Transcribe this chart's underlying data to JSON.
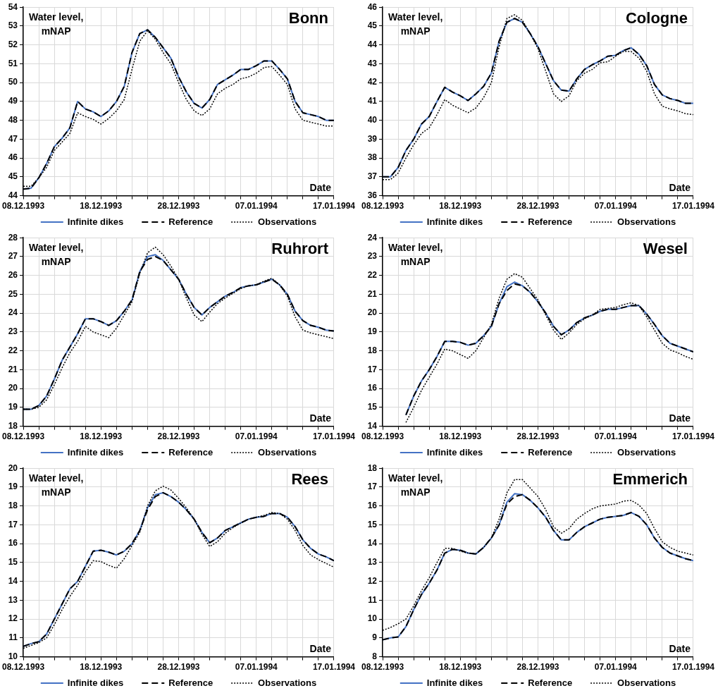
{
  "chart_data": [
    {
      "type": "line",
      "title": "Bonn",
      "ylabel": "Water level, mNAP",
      "xlabel": "Date",
      "x": [
        "1993-12-08",
        "1993-12-09",
        "1993-12-10",
        "1993-12-11",
        "1993-12-12",
        "1993-12-13",
        "1993-12-14",
        "1993-12-15",
        "1993-12-16",
        "1993-12-17",
        "1993-12-18",
        "1993-12-19",
        "1993-12-20",
        "1993-12-21",
        "1993-12-22",
        "1993-12-23",
        "1993-12-24",
        "1993-12-25",
        "1993-12-26",
        "1993-12-27",
        "1993-12-28",
        "1993-12-29",
        "1993-12-30",
        "1993-12-31",
        "1994-01-01",
        "1994-01-02",
        "1994-01-03",
        "1994-01-04",
        "1994-01-05",
        "1994-01-06",
        "1994-01-07",
        "1994-01-08",
        "1994-01-09",
        "1994-01-10",
        "1994-01-11",
        "1994-01-12",
        "1994-01-13",
        "1994-01-14",
        "1994-01-15",
        "1994-01-16",
        "1994-01-17"
      ],
      "series": [
        {
          "name": "Infinite dikes",
          "color": "#4472c4",
          "line_style": "solid",
          "values": [
            44.35,
            44.4,
            44.95,
            45.7,
            46.6,
            47.05,
            47.6,
            49.0,
            48.6,
            48.45,
            48.2,
            48.5,
            49.0,
            49.8,
            51.6,
            52.6,
            52.8,
            52.4,
            51.85,
            51.3,
            50.3,
            49.5,
            48.9,
            48.65,
            49.1,
            49.9,
            50.15,
            50.4,
            50.7,
            50.7,
            50.9,
            51.15,
            51.15,
            50.7,
            50.2,
            49.0,
            48.4,
            48.3,
            48.2,
            48.0,
            48.0
          ]
        },
        {
          "name": "Reference",
          "color": "#000000",
          "line_style": "dashed",
          "values": [
            44.35,
            44.4,
            44.95,
            45.7,
            46.6,
            47.05,
            47.6,
            49.0,
            48.6,
            48.45,
            48.2,
            48.5,
            49.0,
            49.8,
            51.6,
            52.6,
            52.8,
            52.4,
            51.85,
            51.3,
            50.3,
            49.5,
            48.9,
            48.65,
            49.1,
            49.9,
            50.15,
            50.4,
            50.7,
            50.7,
            50.9,
            51.15,
            51.15,
            50.7,
            50.2,
            49.0,
            48.4,
            48.3,
            48.2,
            48.0,
            48.0
          ]
        },
        {
          "name": "Observations",
          "color": "#000000",
          "line_style": "dotted",
          "values": [
            44.5,
            44.5,
            44.95,
            45.5,
            46.4,
            46.85,
            47.3,
            48.4,
            48.2,
            48.05,
            47.8,
            48.1,
            48.5,
            49.1,
            50.7,
            52.2,
            52.75,
            52.3,
            51.6,
            51.0,
            50.0,
            49.1,
            48.5,
            48.25,
            48.6,
            49.4,
            49.7,
            49.9,
            50.2,
            50.3,
            50.5,
            50.8,
            50.85,
            50.4,
            49.9,
            48.6,
            48.0,
            47.9,
            47.8,
            47.7,
            47.7
          ]
        }
      ],
      "xlim": [
        "1993-12-08",
        "1994-01-17"
      ],
      "xticks": [
        {
          "value": "1993-12-08",
          "label": "08.12.1993"
        },
        {
          "value": "1993-12-10",
          "label": null
        },
        {
          "value": "1993-12-12",
          "label": null
        },
        {
          "value": "1993-12-14",
          "label": null
        },
        {
          "value": "1993-12-16",
          "label": null
        },
        {
          "value": "1993-12-18",
          "label": "18.12.1993"
        },
        {
          "value": "1993-12-20",
          "label": null
        },
        {
          "value": "1993-12-22",
          "label": null
        },
        {
          "value": "1993-12-24",
          "label": null
        },
        {
          "value": "1993-12-26",
          "label": null
        },
        {
          "value": "1993-12-28",
          "label": "28.12.1993"
        },
        {
          "value": "1993-12-30",
          "label": null
        },
        {
          "value": "1994-01-01",
          "label": null
        },
        {
          "value": "1994-01-03",
          "label": null
        },
        {
          "value": "1994-01-05",
          "label": null
        },
        {
          "value": "1994-01-07",
          "label": "07.01.1994"
        },
        {
          "value": "1994-01-09",
          "label": null
        },
        {
          "value": "1994-01-11",
          "label": null
        },
        {
          "value": "1994-01-13",
          "label": null
        },
        {
          "value": "1994-01-15",
          "label": null
        },
        {
          "value": "1994-01-17",
          "label": "17.01.1994"
        }
      ],
      "ylim": [
        44,
        54
      ],
      "yticks": [
        44,
        45,
        46,
        47,
        48,
        49,
        50,
        51,
        52,
        53,
        54
      ],
      "grid": true,
      "legend": "bottom",
      "marker": "none"
    },
    {
      "type": "line",
      "title": "Cologne",
      "ylabel": "Water level, mNAP",
      "xlabel": "Date",
      "x": [
        "1993-12-08",
        "1993-12-09",
        "1993-12-10",
        "1993-12-11",
        "1993-12-12",
        "1993-12-13",
        "1993-12-14",
        "1993-12-15",
        "1993-12-16",
        "1993-12-17",
        "1993-12-18",
        "1993-12-19",
        "1993-12-20",
        "1993-12-21",
        "1993-12-22",
        "1993-12-23",
        "1993-12-24",
        "1993-12-25",
        "1993-12-26",
        "1993-12-27",
        "1993-12-28",
        "1993-12-29",
        "1993-12-30",
        "1993-12-31",
        "1994-01-01",
        "1994-01-02",
        "1994-01-03",
        "1994-01-04",
        "1994-01-05",
        "1994-01-06",
        "1994-01-07",
        "1994-01-08",
        "1994-01-09",
        "1994-01-10",
        "1994-01-11",
        "1994-01-12",
        "1994-01-13",
        "1994-01-14",
        "1994-01-15",
        "1994-01-16",
        "1994-01-17"
      ],
      "series": [
        {
          "name": "Infinite dikes",
          "color": "#4472c4",
          "line_style": "solid",
          "values": [
            37.0,
            37.0,
            37.5,
            38.4,
            39.0,
            39.8,
            40.2,
            41.0,
            41.75,
            41.5,
            41.3,
            41.05,
            41.4,
            41.8,
            42.5,
            44.2,
            45.2,
            45.4,
            45.2,
            44.6,
            43.9,
            43.0,
            42.1,
            41.6,
            41.55,
            42.2,
            42.7,
            42.95,
            43.15,
            43.4,
            43.45,
            43.7,
            43.85,
            43.5,
            42.9,
            41.9,
            41.35,
            41.15,
            41.05,
            40.9,
            40.9
          ]
        },
        {
          "name": "Reference",
          "color": "#000000",
          "line_style": "dashed",
          "values": [
            37.0,
            37.0,
            37.5,
            38.4,
            39.0,
            39.8,
            40.2,
            41.0,
            41.75,
            41.5,
            41.3,
            41.05,
            41.4,
            41.8,
            42.5,
            44.2,
            45.2,
            45.4,
            45.2,
            44.6,
            43.9,
            43.0,
            42.1,
            41.6,
            41.55,
            42.2,
            42.7,
            42.95,
            43.15,
            43.4,
            43.45,
            43.7,
            43.85,
            43.5,
            42.9,
            41.9,
            41.35,
            41.15,
            41.05,
            40.9,
            40.9
          ]
        },
        {
          "name": "Observations",
          "color": "#000000",
          "line_style": "dotted",
          "values": [
            36.85,
            36.85,
            37.2,
            38.0,
            38.7,
            39.3,
            39.6,
            40.3,
            41.1,
            40.8,
            40.6,
            40.4,
            40.65,
            41.2,
            42.0,
            43.9,
            45.4,
            45.6,
            45.3,
            44.6,
            43.8,
            42.6,
            41.4,
            41.0,
            41.3,
            42.1,
            42.5,
            42.7,
            43.05,
            43.1,
            43.4,
            43.65,
            43.65,
            43.3,
            42.6,
            41.4,
            40.75,
            40.6,
            40.5,
            40.35,
            40.3
          ]
        }
      ],
      "xlim": [
        "1993-12-08",
        "1994-01-17"
      ],
      "xticks": [
        {
          "value": "1993-12-08",
          "label": "08.12.1993"
        },
        {
          "value": "1993-12-10",
          "label": null
        },
        {
          "value": "1993-12-12",
          "label": null
        },
        {
          "value": "1993-12-14",
          "label": null
        },
        {
          "value": "1993-12-16",
          "label": null
        },
        {
          "value": "1993-12-18",
          "label": "18.12.1993"
        },
        {
          "value": "1993-12-20",
          "label": null
        },
        {
          "value": "1993-12-22",
          "label": null
        },
        {
          "value": "1993-12-24",
          "label": null
        },
        {
          "value": "1993-12-26",
          "label": null
        },
        {
          "value": "1993-12-28",
          "label": "28.12.1993"
        },
        {
          "value": "1993-12-30",
          "label": null
        },
        {
          "value": "1994-01-01",
          "label": null
        },
        {
          "value": "1994-01-03",
          "label": null
        },
        {
          "value": "1994-01-05",
          "label": null
        },
        {
          "value": "1994-01-07",
          "label": "07.01.1994"
        },
        {
          "value": "1994-01-09",
          "label": null
        },
        {
          "value": "1994-01-11",
          "label": null
        },
        {
          "value": "1994-01-13",
          "label": null
        },
        {
          "value": "1994-01-15",
          "label": null
        },
        {
          "value": "1994-01-17",
          "label": "17.01.1994"
        }
      ],
      "ylim": [
        36,
        46
      ],
      "yticks": [
        36,
        37,
        38,
        39,
        40,
        41,
        42,
        43,
        44,
        45,
        46
      ],
      "grid": true,
      "legend": "bottom",
      "marker": "none"
    },
    {
      "type": "line",
      "title": "Ruhrort",
      "ylabel": "Water level, mNAP",
      "xlabel": "Date",
      "x": [
        "1993-12-08",
        "1993-12-09",
        "1993-12-10",
        "1993-12-11",
        "1993-12-12",
        "1993-12-13",
        "1993-12-14",
        "1993-12-15",
        "1993-12-16",
        "1993-12-17",
        "1993-12-18",
        "1993-12-19",
        "1993-12-20",
        "1993-12-21",
        "1993-12-22",
        "1993-12-23",
        "1993-12-24",
        "1993-12-25",
        "1993-12-26",
        "1993-12-27",
        "1993-12-28",
        "1993-12-29",
        "1993-12-30",
        "1993-12-31",
        "1994-01-01",
        "1994-01-02",
        "1994-01-03",
        "1994-01-04",
        "1994-01-05",
        "1994-01-06",
        "1994-01-07",
        "1994-01-08",
        "1994-01-09",
        "1994-01-10",
        "1994-01-11",
        "1994-01-12",
        "1994-01-13",
        "1994-01-14",
        "1994-01-15",
        "1994-01-16",
        "1994-01-17"
      ],
      "series": [
        {
          "name": "Infinite dikes",
          "color": "#4472c4",
          "line_style": "solid",
          "values": [
            18.9,
            18.9,
            19.1,
            19.6,
            20.5,
            21.5,
            22.2,
            22.9,
            23.7,
            23.7,
            23.55,
            23.35,
            23.6,
            24.1,
            24.7,
            26.2,
            27.0,
            27.1,
            26.8,
            26.3,
            25.8,
            25.0,
            24.3,
            23.9,
            24.3,
            24.6,
            24.9,
            25.1,
            25.35,
            25.45,
            25.5,
            25.65,
            25.8,
            25.5,
            25.0,
            24.1,
            23.6,
            23.35,
            23.25,
            23.1,
            23.05
          ]
        },
        {
          "name": "Reference",
          "color": "#000000",
          "line_style": "dashed",
          "values": [
            18.9,
            18.9,
            19.1,
            19.6,
            20.5,
            21.5,
            22.2,
            22.9,
            23.7,
            23.7,
            23.55,
            23.35,
            23.6,
            24.1,
            24.7,
            26.2,
            26.85,
            27.0,
            26.8,
            26.3,
            25.8,
            25.0,
            24.3,
            23.9,
            24.3,
            24.6,
            24.9,
            25.1,
            25.35,
            25.45,
            25.5,
            25.65,
            25.8,
            25.5,
            25.0,
            24.1,
            23.6,
            23.35,
            23.25,
            23.1,
            23.05
          ]
        },
        {
          "name": "Observations",
          "color": "#000000",
          "line_style": "dotted",
          "values": [
            18.9,
            18.9,
            19.0,
            19.4,
            20.2,
            21.1,
            21.9,
            22.5,
            23.3,
            23.0,
            22.85,
            22.7,
            23.2,
            23.9,
            24.6,
            26.1,
            27.2,
            27.5,
            27.1,
            26.5,
            25.8,
            24.8,
            23.9,
            23.55,
            24.05,
            24.5,
            24.8,
            25.05,
            25.3,
            25.45,
            25.5,
            25.7,
            25.85,
            25.5,
            24.9,
            23.8,
            23.1,
            22.95,
            22.85,
            22.75,
            22.65
          ]
        }
      ],
      "xlim": [
        "1993-12-08",
        "1994-01-17"
      ],
      "xticks": [
        {
          "value": "1993-12-08",
          "label": "08.12.1993"
        },
        {
          "value": "1993-12-10",
          "label": null
        },
        {
          "value": "1993-12-12",
          "label": null
        },
        {
          "value": "1993-12-14",
          "label": null
        },
        {
          "value": "1993-12-16",
          "label": null
        },
        {
          "value": "1993-12-18",
          "label": "18.12.1993"
        },
        {
          "value": "1993-12-20",
          "label": null
        },
        {
          "value": "1993-12-22",
          "label": null
        },
        {
          "value": "1993-12-24",
          "label": null
        },
        {
          "value": "1993-12-26",
          "label": null
        },
        {
          "value": "1993-12-28",
          "label": "28.12.1993"
        },
        {
          "value": "1993-12-30",
          "label": null
        },
        {
          "value": "1994-01-01",
          "label": null
        },
        {
          "value": "1994-01-03",
          "label": null
        },
        {
          "value": "1994-01-05",
          "label": null
        },
        {
          "value": "1994-01-07",
          "label": "07.01.1994"
        },
        {
          "value": "1994-01-09",
          "label": null
        },
        {
          "value": "1994-01-11",
          "label": null
        },
        {
          "value": "1994-01-13",
          "label": null
        },
        {
          "value": "1994-01-15",
          "label": null
        },
        {
          "value": "1994-01-17",
          "label": "17.01.1994"
        }
      ],
      "ylim": [
        18,
        28
      ],
      "yticks": [
        18,
        19,
        20,
        21,
        22,
        23,
        24,
        25,
        26,
        27,
        28
      ],
      "grid": true,
      "legend": "bottom",
      "marker": "none"
    },
    {
      "type": "line",
      "title": "Wesel",
      "ylabel": "Water level, mNAP",
      "xlabel": "Date",
      "x": [
        "1993-12-11",
        "1993-12-12",
        "1993-12-13",
        "1993-12-14",
        "1993-12-15",
        "1993-12-16",
        "1993-12-17",
        "1993-12-18",
        "1993-12-19",
        "1993-12-20",
        "1993-12-21",
        "1993-12-22",
        "1993-12-23",
        "1993-12-24",
        "1993-12-25",
        "1993-12-26",
        "1993-12-27",
        "1993-12-28",
        "1993-12-29",
        "1993-12-30",
        "1993-12-31",
        "1994-01-01",
        "1994-01-02",
        "1994-01-03",
        "1994-01-04",
        "1994-01-05",
        "1994-01-06",
        "1994-01-07",
        "1994-01-08",
        "1994-01-09",
        "1994-01-10",
        "1994-01-11",
        "1994-01-12",
        "1994-01-13",
        "1994-01-14",
        "1994-01-15",
        "1994-01-16",
        "1994-01-17"
      ],
      "series": [
        {
          "name": "Infinite dikes",
          "color": "#4472c4",
          "line_style": "solid",
          "values": [
            14.6,
            15.6,
            16.4,
            17.0,
            17.7,
            18.5,
            18.5,
            18.45,
            18.3,
            18.4,
            18.8,
            19.3,
            20.5,
            21.4,
            21.65,
            21.45,
            21.1,
            20.6,
            20.0,
            19.3,
            18.85,
            19.1,
            19.5,
            19.75,
            19.9,
            20.1,
            20.2,
            20.2,
            20.3,
            20.4,
            20.4,
            19.95,
            19.4,
            18.8,
            18.4,
            18.25,
            18.1,
            17.95
          ]
        },
        {
          "name": "Reference",
          "color": "#000000",
          "line_style": "dashed",
          "values": [
            14.6,
            15.6,
            16.4,
            17.0,
            17.7,
            18.5,
            18.5,
            18.45,
            18.3,
            18.4,
            18.8,
            19.3,
            20.5,
            21.2,
            21.55,
            21.45,
            21.1,
            20.6,
            20.0,
            19.3,
            18.85,
            19.1,
            19.5,
            19.75,
            19.9,
            20.1,
            20.2,
            20.2,
            20.3,
            20.4,
            20.4,
            19.95,
            19.4,
            18.8,
            18.4,
            18.25,
            18.1,
            17.95
          ]
        },
        {
          "name": "Observations",
          "color": "#000000",
          "line_style": "dotted",
          "values": [
            14.2,
            15.0,
            15.9,
            16.6,
            17.3,
            18.1,
            18.0,
            17.8,
            17.6,
            18.0,
            18.7,
            19.4,
            20.8,
            21.8,
            22.1,
            21.9,
            21.3,
            20.7,
            19.9,
            19.1,
            18.6,
            18.95,
            19.4,
            19.7,
            19.9,
            20.2,
            20.25,
            20.3,
            20.45,
            20.55,
            20.4,
            19.8,
            19.1,
            18.4,
            18.05,
            17.9,
            17.7,
            17.55
          ]
        }
      ],
      "xlim": [
        "1993-12-08",
        "1994-01-17"
      ],
      "xticks": [
        {
          "value": "1993-12-08",
          "label": "08.12.1993"
        },
        {
          "value": "1993-12-10",
          "label": null
        },
        {
          "value": "1993-12-12",
          "label": null
        },
        {
          "value": "1993-12-14",
          "label": null
        },
        {
          "value": "1993-12-16",
          "label": null
        },
        {
          "value": "1993-12-18",
          "label": "18.12.1993"
        },
        {
          "value": "1993-12-20",
          "label": null
        },
        {
          "value": "1993-12-22",
          "label": null
        },
        {
          "value": "1993-12-24",
          "label": null
        },
        {
          "value": "1993-12-26",
          "label": null
        },
        {
          "value": "1993-12-28",
          "label": "28.12.1993"
        },
        {
          "value": "1993-12-30",
          "label": null
        },
        {
          "value": "1994-01-01",
          "label": null
        },
        {
          "value": "1994-01-03",
          "label": null
        },
        {
          "value": "1994-01-05",
          "label": null
        },
        {
          "value": "1994-01-07",
          "label": "07.01.1994"
        },
        {
          "value": "1994-01-09",
          "label": null
        },
        {
          "value": "1994-01-11",
          "label": null
        },
        {
          "value": "1994-01-13",
          "label": null
        },
        {
          "value": "1994-01-15",
          "label": null
        },
        {
          "value": "1994-01-17",
          "label": "17.01.1994"
        }
      ],
      "ylim": [
        14,
        24
      ],
      "yticks": [
        14,
        15,
        16,
        17,
        18,
        19,
        20,
        21,
        22,
        23,
        24
      ],
      "grid": true,
      "legend": "bottom",
      "marker": "none"
    },
    {
      "type": "line",
      "title": "Rees",
      "ylabel": "Water level, mNAP",
      "xlabel": "Date",
      "x": [
        "1993-12-08",
        "1993-12-09",
        "1993-12-10",
        "1993-12-11",
        "1993-12-12",
        "1993-12-13",
        "1993-12-14",
        "1993-12-15",
        "1993-12-16",
        "1993-12-17",
        "1993-12-18",
        "1993-12-19",
        "1993-12-20",
        "1993-12-21",
        "1993-12-22",
        "1993-12-23",
        "1993-12-24",
        "1993-12-25",
        "1993-12-26",
        "1993-12-27",
        "1993-12-28",
        "1993-12-29",
        "1993-12-30",
        "1993-12-31",
        "1994-01-01",
        "1994-01-02",
        "1994-01-03",
        "1994-01-04",
        "1994-01-05",
        "1994-01-06",
        "1994-01-07",
        "1994-01-08",
        "1994-01-09",
        "1994-01-10",
        "1994-01-11",
        "1994-01-12",
        "1994-01-13",
        "1994-01-14",
        "1994-01-15",
        "1994-01-16",
        "1994-01-17"
      ],
      "series": [
        {
          "name": "Infinite dikes",
          "color": "#4472c4",
          "line_style": "solid",
          "values": [
            10.55,
            10.7,
            10.8,
            11.2,
            12.0,
            12.8,
            13.6,
            14.0,
            14.8,
            15.6,
            15.65,
            15.55,
            15.4,
            15.6,
            16.0,
            16.7,
            17.9,
            18.6,
            18.7,
            18.5,
            18.2,
            17.8,
            17.3,
            16.6,
            16.05,
            16.3,
            16.7,
            16.9,
            17.1,
            17.3,
            17.4,
            17.45,
            17.6,
            17.6,
            17.4,
            16.9,
            16.2,
            15.75,
            15.45,
            15.3,
            15.1
          ]
        },
        {
          "name": "Reference",
          "color": "#000000",
          "line_style": "dashed",
          "values": [
            10.55,
            10.7,
            10.8,
            11.2,
            12.0,
            12.8,
            13.6,
            14.0,
            14.8,
            15.6,
            15.65,
            15.55,
            15.4,
            15.6,
            16.0,
            16.7,
            17.8,
            18.5,
            18.7,
            18.5,
            18.2,
            17.8,
            17.3,
            16.6,
            16.05,
            16.3,
            16.7,
            16.9,
            17.1,
            17.3,
            17.4,
            17.45,
            17.6,
            17.6,
            17.4,
            16.9,
            16.2,
            15.75,
            15.45,
            15.3,
            15.1
          ]
        },
        {
          "name": "Observations",
          "color": "#000000",
          "line_style": "dotted",
          "values": [
            10.45,
            10.6,
            10.75,
            11.0,
            11.7,
            12.5,
            13.2,
            13.8,
            14.5,
            15.1,
            15.05,
            14.85,
            14.7,
            15.2,
            15.9,
            16.6,
            18.0,
            18.8,
            19.05,
            18.85,
            18.4,
            17.9,
            17.3,
            16.5,
            15.85,
            16.1,
            16.55,
            16.85,
            17.1,
            17.3,
            17.4,
            17.5,
            17.65,
            17.6,
            17.3,
            16.7,
            15.9,
            15.4,
            15.15,
            14.95,
            14.75
          ]
        }
      ],
      "xlim": [
        "1993-12-08",
        "1994-01-17"
      ],
      "xticks": [
        {
          "value": "1993-12-08",
          "label": "08.12.1993"
        },
        {
          "value": "1993-12-10",
          "label": null
        },
        {
          "value": "1993-12-12",
          "label": null
        },
        {
          "value": "1993-12-14",
          "label": null
        },
        {
          "value": "1993-12-16",
          "label": null
        },
        {
          "value": "1993-12-18",
          "label": "18.12.1993"
        },
        {
          "value": "1993-12-20",
          "label": null
        },
        {
          "value": "1993-12-22",
          "label": null
        },
        {
          "value": "1993-12-24",
          "label": null
        },
        {
          "value": "1993-12-26",
          "label": null
        },
        {
          "value": "1993-12-28",
          "label": "28.12.1993"
        },
        {
          "value": "1993-12-30",
          "label": null
        },
        {
          "value": "1994-01-01",
          "label": null
        },
        {
          "value": "1994-01-03",
          "label": null
        },
        {
          "value": "1994-01-05",
          "label": null
        },
        {
          "value": "1994-01-07",
          "label": "07.01.1994"
        },
        {
          "value": "1994-01-09",
          "label": null
        },
        {
          "value": "1994-01-11",
          "label": null
        },
        {
          "value": "1994-01-13",
          "label": null
        },
        {
          "value": "1994-01-15",
          "label": null
        },
        {
          "value": "1994-01-17",
          "label": "17.01.1994"
        }
      ],
      "ylim": [
        10,
        20
      ],
      "yticks": [
        10,
        11,
        12,
        13,
        14,
        15,
        16,
        17,
        18,
        19,
        20
      ],
      "grid": true,
      "legend": "bottom",
      "marker": "none"
    },
    {
      "type": "line",
      "title": "Emmerich",
      "ylabel": "Water level, mNAP",
      "xlabel": "Date",
      "x": [
        "1993-12-08",
        "1993-12-09",
        "1993-12-10",
        "1993-12-11",
        "1993-12-12",
        "1993-12-13",
        "1993-12-14",
        "1993-12-15",
        "1993-12-16",
        "1993-12-17",
        "1993-12-18",
        "1993-12-19",
        "1993-12-20",
        "1993-12-21",
        "1993-12-22",
        "1993-12-23",
        "1993-12-24",
        "1993-12-25",
        "1993-12-26",
        "1993-12-27",
        "1993-12-28",
        "1993-12-29",
        "1993-12-30",
        "1993-12-31",
        "1994-01-01",
        "1994-01-02",
        "1994-01-03",
        "1994-01-04",
        "1994-01-05",
        "1994-01-06",
        "1994-01-07",
        "1994-01-08",
        "1994-01-09",
        "1994-01-10",
        "1994-01-11",
        "1994-01-12",
        "1994-01-13",
        "1994-01-14",
        "1994-01-15",
        "1994-01-16",
        "1994-01-17"
      ],
      "series": [
        {
          "name": "Infinite dikes",
          "color": "#4472c4",
          "line_style": "solid",
          "values": [
            8.9,
            9.0,
            9.05,
            9.6,
            10.5,
            11.3,
            11.9,
            12.6,
            13.5,
            13.7,
            13.65,
            13.5,
            13.45,
            13.8,
            14.3,
            15.0,
            16.2,
            16.65,
            16.6,
            16.3,
            15.9,
            15.4,
            14.7,
            14.2,
            14.2,
            14.6,
            14.9,
            15.1,
            15.3,
            15.4,
            15.45,
            15.5,
            15.65,
            15.45,
            15.0,
            14.3,
            13.8,
            13.5,
            13.35,
            13.2,
            13.1
          ]
        },
        {
          "name": "Reference",
          "color": "#000000",
          "line_style": "dashed",
          "values": [
            8.9,
            9.0,
            9.05,
            9.6,
            10.5,
            11.3,
            11.9,
            12.6,
            13.5,
            13.7,
            13.65,
            13.5,
            13.45,
            13.8,
            14.3,
            15.0,
            16.1,
            16.5,
            16.6,
            16.3,
            15.9,
            15.4,
            14.7,
            14.2,
            14.2,
            14.6,
            14.9,
            15.1,
            15.3,
            15.4,
            15.45,
            15.5,
            15.65,
            15.45,
            15.0,
            14.3,
            13.8,
            13.5,
            13.35,
            13.2,
            13.1
          ]
        },
        {
          "name": "Observations",
          "color": "#000000",
          "line_style": "dotted",
          "values": [
            9.4,
            9.55,
            9.75,
            10.0,
            10.7,
            11.5,
            12.2,
            13.0,
            13.75,
            13.75,
            13.6,
            13.5,
            13.45,
            13.8,
            14.3,
            15.3,
            16.7,
            17.4,
            17.4,
            16.95,
            16.5,
            15.8,
            14.9,
            14.55,
            14.8,
            15.3,
            15.6,
            15.85,
            16.0,
            16.05,
            16.1,
            16.25,
            16.3,
            16.05,
            15.6,
            14.8,
            14.1,
            13.8,
            13.6,
            13.5,
            13.4
          ]
        }
      ],
      "xlim": [
        "1993-12-08",
        "1994-01-17"
      ],
      "xticks": [
        {
          "value": "1993-12-08",
          "label": "08.12.1993"
        },
        {
          "value": "1993-12-10",
          "label": null
        },
        {
          "value": "1993-12-12",
          "label": null
        },
        {
          "value": "1993-12-14",
          "label": null
        },
        {
          "value": "1993-12-16",
          "label": null
        },
        {
          "value": "1993-12-18",
          "label": "18.12.1993"
        },
        {
          "value": "1993-12-20",
          "label": null
        },
        {
          "value": "1993-12-22",
          "label": null
        },
        {
          "value": "1993-12-24",
          "label": null
        },
        {
          "value": "1993-12-26",
          "label": null
        },
        {
          "value": "1993-12-28",
          "label": "28.12.1993"
        },
        {
          "value": "1993-12-30",
          "label": null
        },
        {
          "value": "1994-01-01",
          "label": null
        },
        {
          "value": "1994-01-03",
          "label": null
        },
        {
          "value": "1994-01-05",
          "label": null
        },
        {
          "value": "1994-01-07",
          "label": "07.01.1994"
        },
        {
          "value": "1994-01-09",
          "label": null
        },
        {
          "value": "1994-01-11",
          "label": null
        },
        {
          "value": "1994-01-13",
          "label": null
        },
        {
          "value": "1994-01-15",
          "label": null
        },
        {
          "value": "1994-01-17",
          "label": "17.01.1994"
        }
      ],
      "ylim": [
        8,
        18
      ],
      "yticks": [
        8,
        9,
        10,
        11,
        12,
        13,
        14,
        15,
        16,
        17,
        18
      ],
      "grid": true,
      "legend": "bottom",
      "marker": "none"
    }
  ]
}
